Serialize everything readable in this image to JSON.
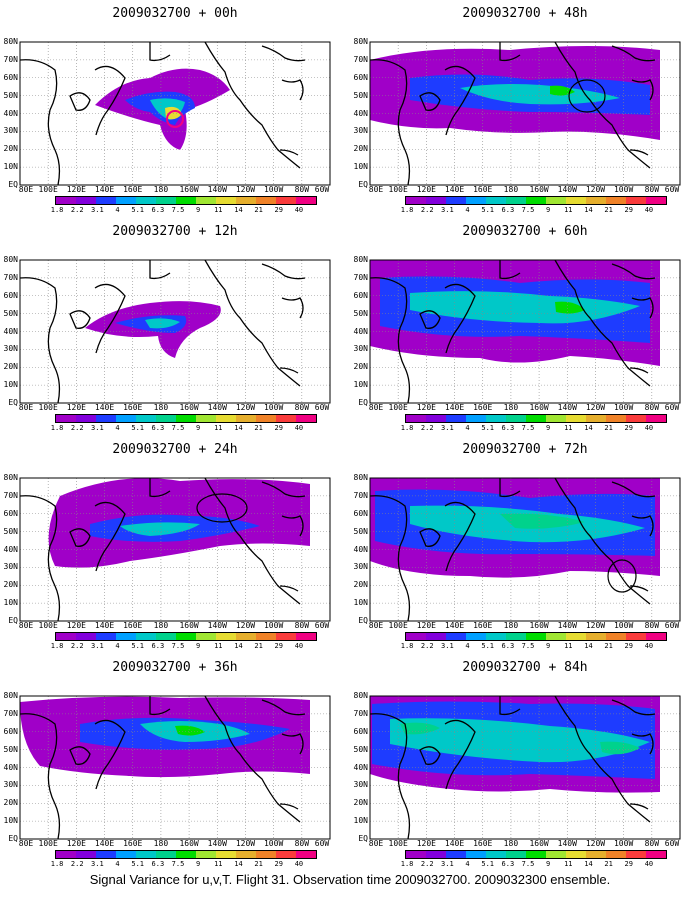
{
  "panels": [
    {
      "title": "2009032700 + 00h"
    },
    {
      "title": "2009032700 + 48h"
    },
    {
      "title": "2009032700 + 12h"
    },
    {
      "title": "2009032700 + 60h"
    },
    {
      "title": "2009032700 + 24h"
    },
    {
      "title": "2009032700 + 72h"
    },
    {
      "title": "2009032700 + 36h"
    },
    {
      "title": "2009032700 + 84h"
    }
  ],
  "y_labels": [
    "80N",
    "70N",
    "60N",
    "50N",
    "40N",
    "30N",
    "20N",
    "10N",
    "EQ"
  ],
  "x_labels": [
    "80E",
    "100E",
    "120E",
    "140E",
    "160E",
    "180",
    "160W",
    "140W",
    "120W",
    "100W",
    "80W",
    "60W"
  ],
  "colorbar": {
    "colors": [
      "#a000c8",
      "#8200dc",
      "#1e3cff",
      "#00a0ff",
      "#00c8c8",
      "#00d28c",
      "#00dc00",
      "#a0e632",
      "#e6dc32",
      "#e6af2d",
      "#f08228",
      "#fa3c3c",
      "#f00082"
    ],
    "labels": [
      "1.8",
      "2.2",
      "3.1",
      "4",
      "5.1",
      "6.3",
      "7.5",
      "9",
      "11",
      "14",
      "21",
      "29",
      "40"
    ]
  },
  "footer": "Signal Variance for u,v,T. Flight 31. Observation time 2009032700. 2009032300 ensemble."
}
